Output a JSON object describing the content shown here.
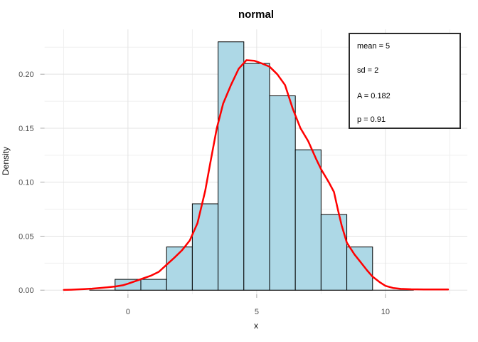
{
  "title": "normal",
  "axes": {
    "x_label": "x",
    "y_label": "Density"
  },
  "stats_box": {
    "lines": [
      "mean = 5",
      "sd = 2",
      "A = 0.182",
      "p = 0.91"
    ],
    "values": {
      "mean": 5,
      "sd": 2,
      "A": 0.182,
      "p": 0.91
    }
  },
  "colors": {
    "bar_fill": "#ADD8E6",
    "bar_stroke": "#000000",
    "curve": "#FF0000",
    "grid_major": "#E3E3E3",
    "grid_minor": "#EFEFEF",
    "tick": "#A9A9A9",
    "tick_label": "#4D4D4D",
    "baseline": "#000000",
    "stats_border": "#2B2B2B",
    "background": "#FFFFFF"
  },
  "chart_data": {
    "type": "bar",
    "subtype": "histogram-with-density-curve",
    "title": "normal",
    "xlabel": "x",
    "ylabel": "Density",
    "xlim": [
      -3.24,
      13.18
    ],
    "ylim": [
      -0.0038,
      0.2415
    ],
    "grid": "on",
    "legend_position": "none",
    "x_ticks": {
      "values": [
        0,
        5,
        10
      ],
      "labels": [
        "0",
        "5",
        "10"
      ],
      "minor": [
        -2.5,
        2.5,
        7.5,
        12.5
      ]
    },
    "y_ticks": {
      "values": [
        0,
        0.05,
        0.1,
        0.15,
        0.2
      ],
      "labels": [
        "0.00",
        "0.05",
        "0.10",
        "0.15",
        "0.20"
      ],
      "minor": [
        0.025,
        0.075,
        0.125,
        0.175,
        0.225
      ]
    },
    "histogram": {
      "bin_centers": [
        0,
        1,
        2,
        3,
        4,
        5,
        6,
        7,
        8,
        9
      ],
      "bin_width": 1,
      "densities": [
        0.01,
        0.01,
        0.04,
        0.08,
        0.23,
        0.21,
        0.18,
        0.13,
        0.07,
        0.04
      ]
    },
    "baseline_extent": [
      -1.5,
      11.1
    ],
    "density_curve": {
      "name": "kernel-density-estimate",
      "points": [
        [
          -2.49,
          0.0002
        ],
        [
          -2.2,
          0.0004
        ],
        [
          -2.0,
          0.0006
        ],
        [
          -1.7,
          0.001
        ],
        [
          -1.4,
          0.0014
        ],
        [
          -1.1,
          0.002
        ],
        [
          -0.8,
          0.0026
        ],
        [
          -0.5,
          0.0034
        ],
        [
          -0.2,
          0.0045
        ],
        [
          0.0,
          0.006
        ],
        [
          0.3,
          0.0085
        ],
        [
          0.6,
          0.011
        ],
        [
          0.9,
          0.0135
        ],
        [
          1.2,
          0.017
        ],
        [
          1.5,
          0.0235
        ],
        [
          1.8,
          0.03
        ],
        [
          2.1,
          0.037
        ],
        [
          2.4,
          0.046
        ],
        [
          2.7,
          0.062
        ],
        [
          3.0,
          0.092
        ],
        [
          3.2,
          0.118
        ],
        [
          3.45,
          0.15
        ],
        [
          3.7,
          0.173
        ],
        [
          4.0,
          0.19
        ],
        [
          4.3,
          0.205
        ],
        [
          4.6,
          0.213
        ],
        [
          4.9,
          0.2125
        ],
        [
          5.2,
          0.21
        ],
        [
          5.5,
          0.207
        ],
        [
          5.8,
          0.2
        ],
        [
          6.1,
          0.19
        ],
        [
          6.4,
          0.168
        ],
        [
          6.7,
          0.15
        ],
        [
          7.0,
          0.138
        ],
        [
          7.3,
          0.122
        ],
        [
          7.5,
          0.112
        ],
        [
          7.8,
          0.1
        ],
        [
          8.0,
          0.091
        ],
        [
          8.15,
          0.075
        ],
        [
          8.3,
          0.06
        ],
        [
          8.5,
          0.044
        ],
        [
          8.8,
          0.033
        ],
        [
          9.0,
          0.027
        ],
        [
          9.3,
          0.018
        ],
        [
          9.5,
          0.0125
        ],
        [
          9.8,
          0.007
        ],
        [
          10.0,
          0.004
        ],
        [
          10.3,
          0.002
        ],
        [
          10.6,
          0.0012
        ],
        [
          11.0,
          0.0008
        ],
        [
          11.5,
          0.0007
        ],
        [
          12.0,
          0.0007
        ],
        [
          12.43,
          0.0007
        ]
      ]
    },
    "annotations": [
      "mean = 5",
      "sd = 2",
      "A = 0.182",
      "p = 0.91"
    ]
  }
}
